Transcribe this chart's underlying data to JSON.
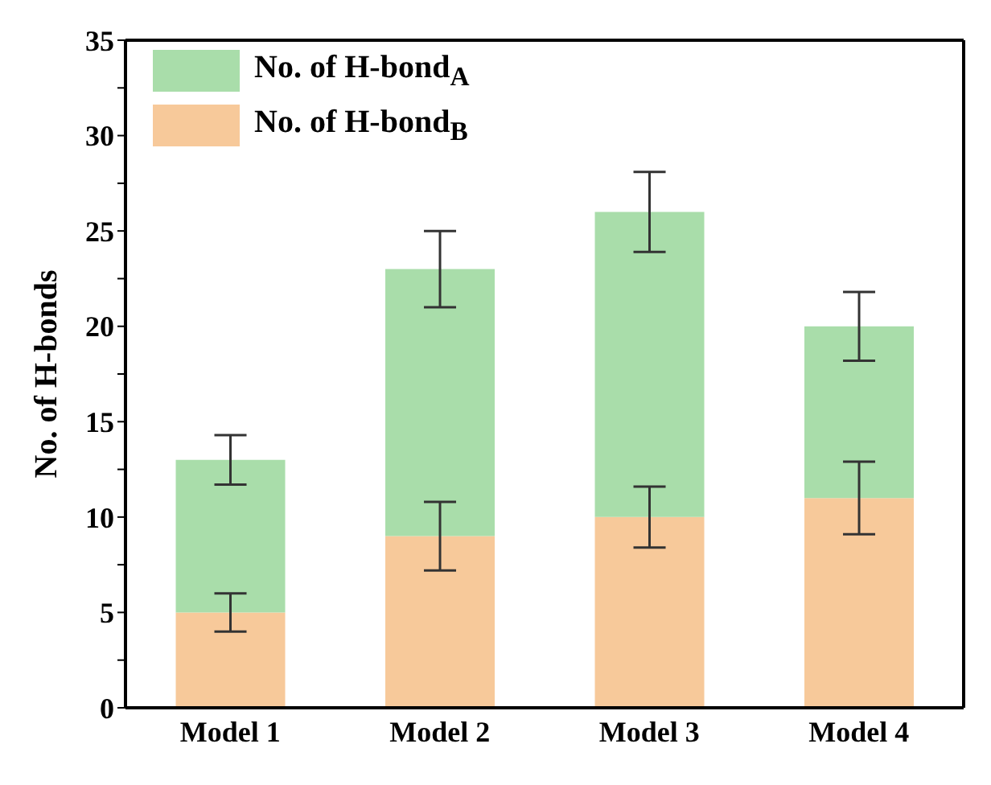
{
  "chart_data": {
    "type": "bar",
    "stacked": true,
    "ylabel": "No. of H-bonds",
    "categories": [
      "Model 1",
      "Model 2",
      "Model 3",
      "Model 4"
    ],
    "series": [
      {
        "name": "No. of H-bond$_{B}$",
        "color": "#f7c99a",
        "values": [
          5,
          9,
          10,
          11
        ],
        "errors": [
          1,
          1.8,
          1.6,
          1.9
        ]
      },
      {
        "name": "No. of H-bond$_{A}$",
        "color": "#a9ddaa",
        "values": [
          8,
          14,
          16,
          9
        ],
        "errors": [
          1.3,
          2,
          2.1,
          1.8
        ]
      }
    ],
    "ylim": [
      0,
      35
    ],
    "yticks": [
      0,
      {
        "value": 2.5,
        "label": null
      },
      5,
      {
        "value": 7.5,
        "label": null
      },
      10,
      {
        "value": 12.5,
        "label": null
      },
      15,
      {
        "value": 17.5,
        "label": null
      },
      20,
      {
        "value": 22.5,
        "label": null
      },
      25,
      {
        "value": 27.5,
        "label": null
      },
      30,
      {
        "value": 32.5,
        "label": null
      },
      35
    ],
    "grid": false,
    "legend": "top left"
  }
}
